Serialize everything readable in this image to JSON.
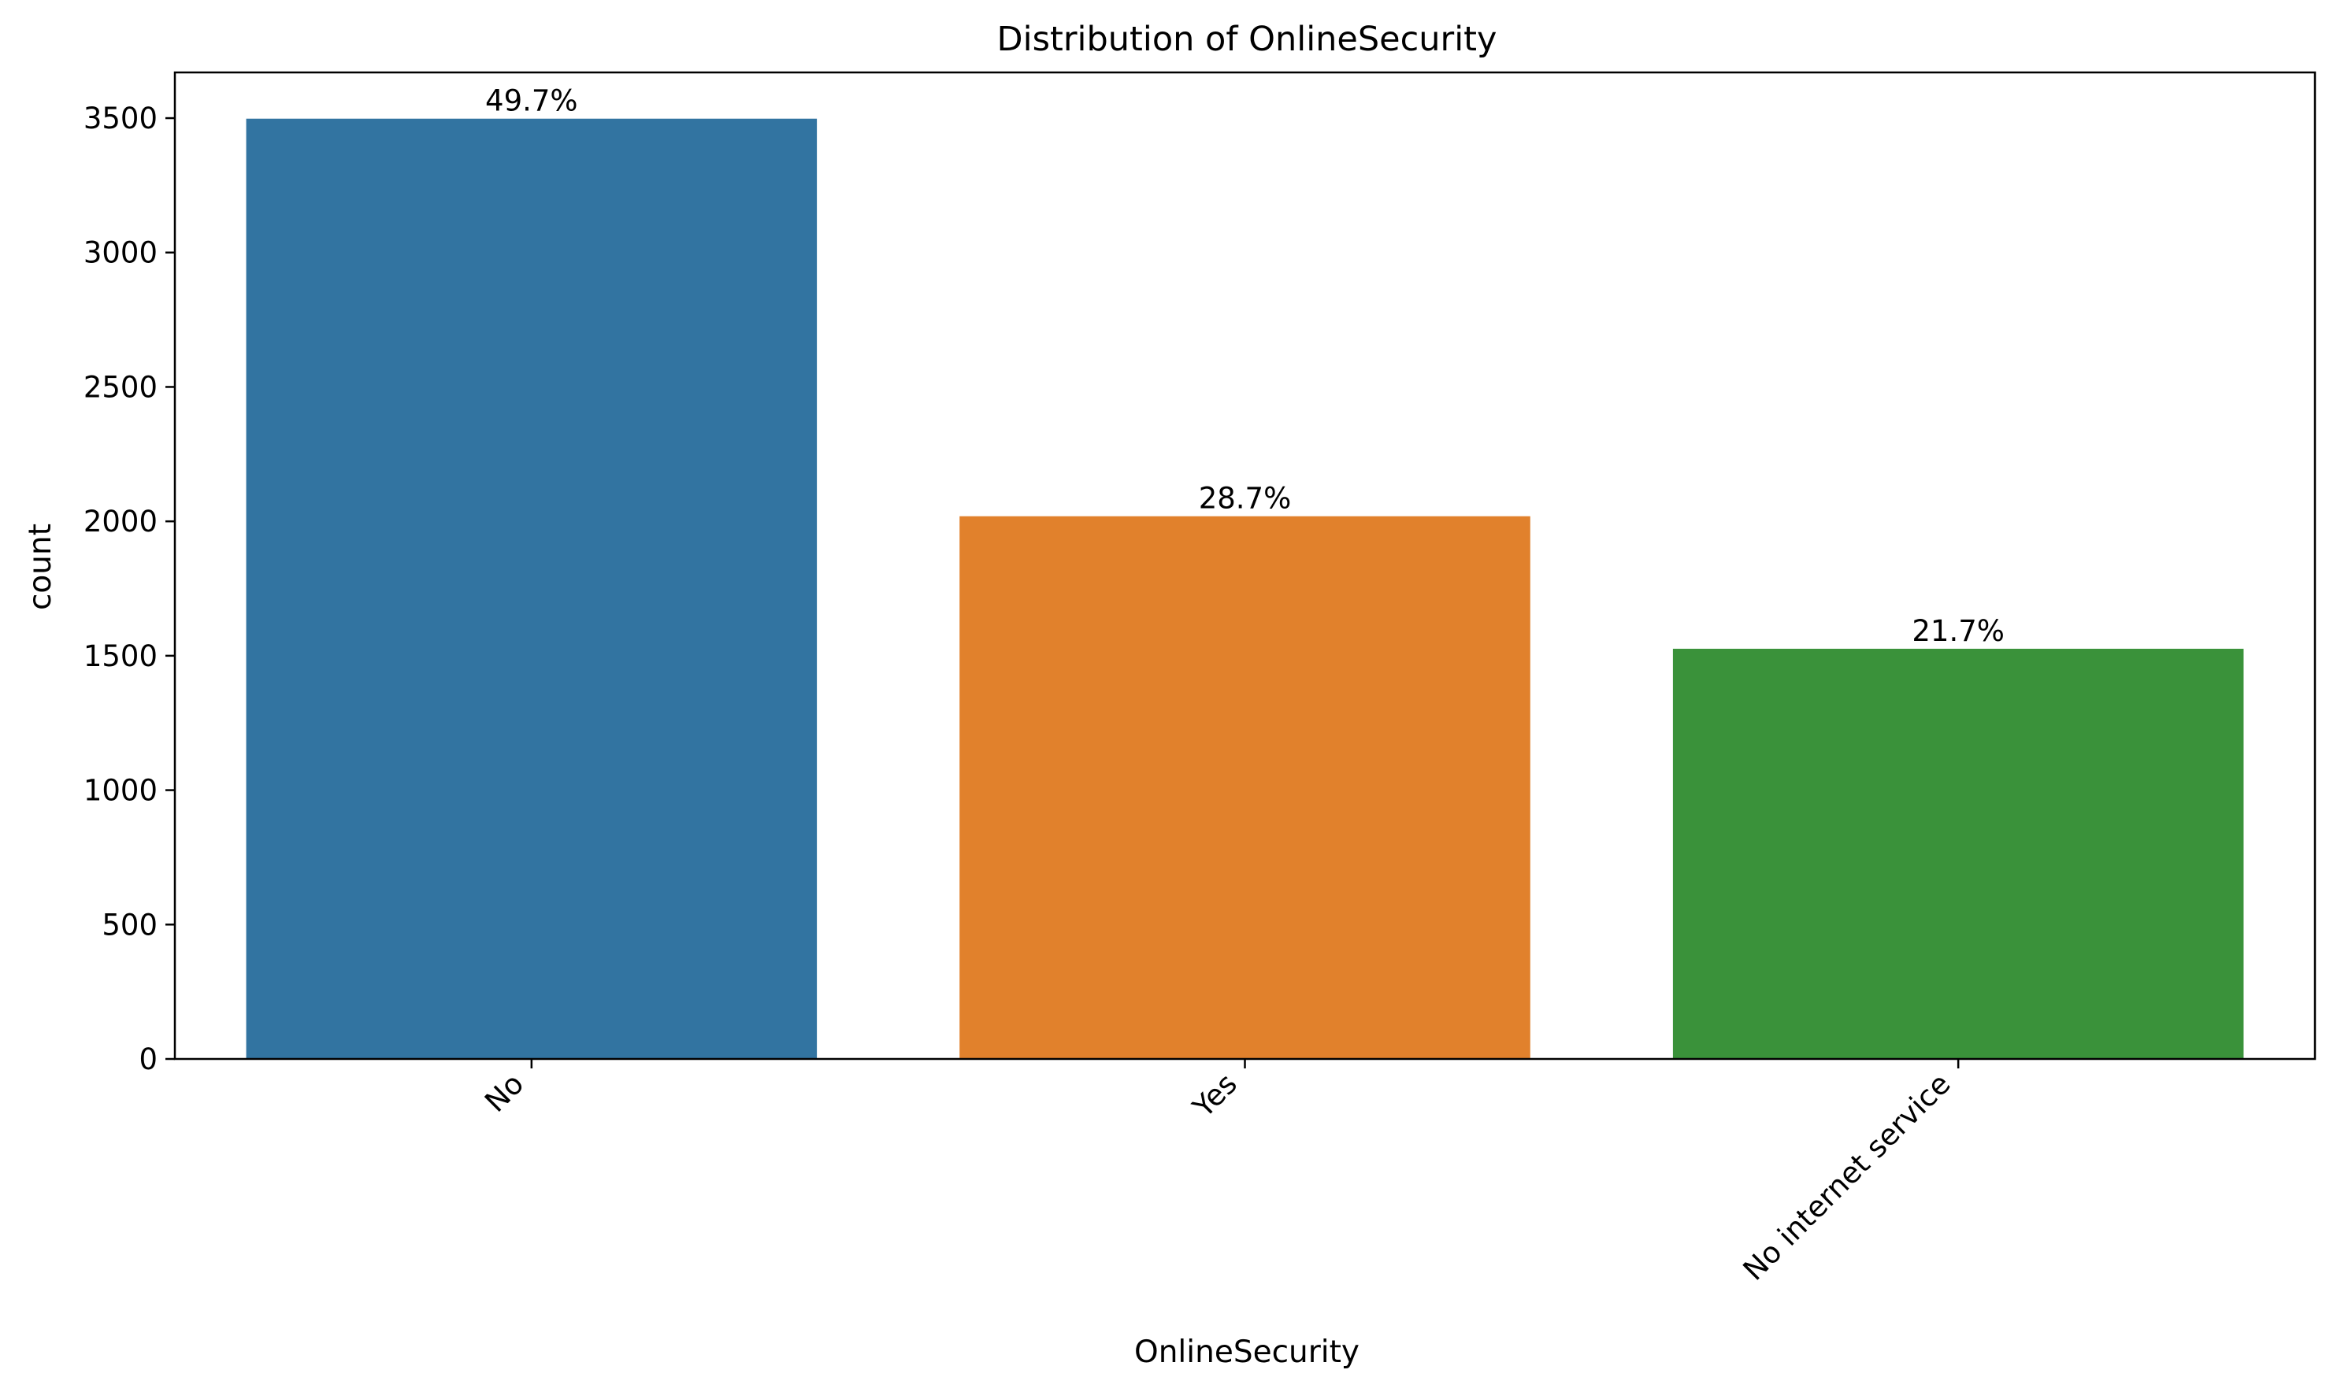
{
  "chart_data": {
    "type": "bar",
    "title": "Distribution of OnlineSecurity",
    "xlabel": "OnlineSecurity",
    "ylabel": "count",
    "categories": [
      "No",
      "Yes",
      "No internet service"
    ],
    "values": [
      3498,
      2019,
      1526
    ],
    "bar_labels": [
      "49.7%",
      "28.7%",
      "21.7%"
    ],
    "colors": [
      "#3274a1",
      "#e1812c",
      "#3a923a"
    ],
    "ylim": [
      0,
      3670
    ],
    "yticks": [
      0,
      500,
      1000,
      1500,
      2000,
      2500,
      3000,
      3500
    ],
    "grid": false,
    "legend": "none"
  }
}
